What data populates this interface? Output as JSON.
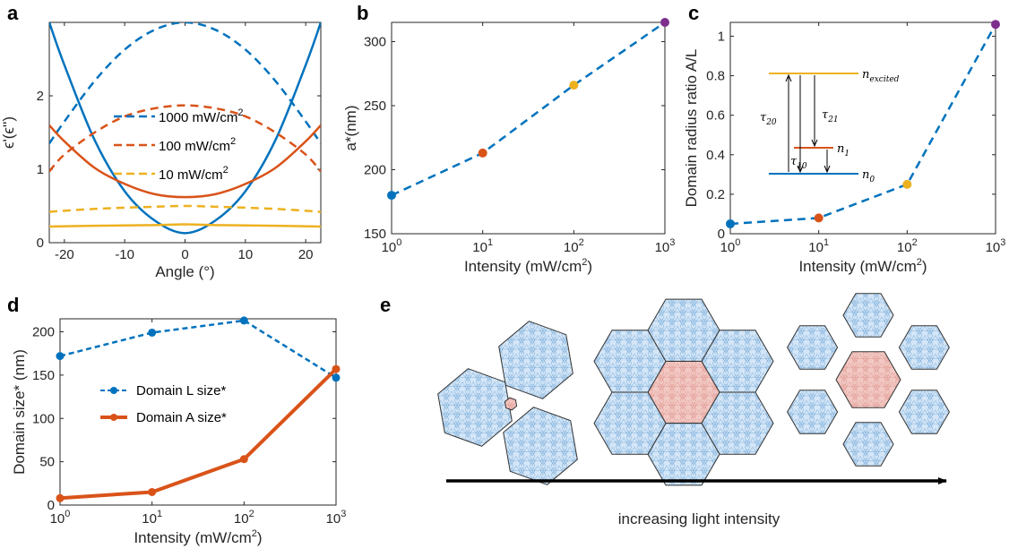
{
  "panel_labels": [
    "a",
    "b",
    "c",
    "d",
    "e"
  ],
  "colors": {
    "blue": "#0072BD",
    "orange": "#D95319",
    "yellow": "#EDB120",
    "purple": "#7E2F8E",
    "hex_blue": "#d4e6f7",
    "hex_red": "#f2c9c4"
  },
  "chart_data": [
    {
      "id": "a",
      "type": "line",
      "xlabel": "Angle (°)",
      "ylabel": "ϵ'(ϵ'')",
      "xlim": [
        -22.5,
        22.5
      ],
      "ylim": [
        0,
        3.0
      ],
      "xticks": [
        -20,
        -10,
        0,
        10,
        20
      ],
      "xtick_labels": [
        "-20",
        "-10",
        "0",
        "10",
        "20"
      ],
      "yticks": [
        0,
        1,
        2
      ],
      "ytick_labels": [
        "0",
        "1",
        "2"
      ],
      "legend_position": "center",
      "legend": [
        {
          "label": "1000 mW/cm",
          "sup": "2",
          "color": "#0072BD"
        },
        {
          "label": "100 mW/cm",
          "sup": "2",
          "color": "#D95319"
        },
        {
          "label": "10 mW/cm",
          "sup": "2",
          "color": "#EDB120"
        }
      ],
      "series": [
        {
          "color": "#0072BD",
          "style": "dashed",
          "x": [
            -22.5,
            -20,
            -15,
            -10,
            -5,
            0,
            5,
            10,
            15,
            20,
            22.5
          ],
          "y": [
            1.35,
            1.65,
            2.2,
            2.63,
            2.9,
            3.0,
            2.9,
            2.63,
            2.2,
            1.65,
            1.35
          ]
        },
        {
          "color": "#0072BD",
          "style": "solid",
          "x": [
            -22.5,
            -20,
            -15,
            -10,
            -5,
            0,
            5,
            10,
            15,
            20,
            22.5
          ],
          "y": [
            3.0,
            2.42,
            1.4,
            0.7,
            0.3,
            0.13,
            0.3,
            0.7,
            1.4,
            2.42,
            3.0
          ]
        },
        {
          "color": "#D95319",
          "style": "dashed",
          "x": [
            -22.5,
            -20,
            -15,
            -10,
            -5,
            0,
            5,
            10,
            15,
            20,
            22.5
          ],
          "y": [
            0.97,
            1.2,
            1.5,
            1.72,
            1.83,
            1.87,
            1.83,
            1.72,
            1.5,
            1.2,
            0.97
          ]
        },
        {
          "color": "#D95319",
          "style": "solid",
          "x": [
            -22.5,
            -20,
            -15,
            -10,
            -5,
            0,
            5,
            10,
            15,
            20,
            22.5
          ],
          "y": [
            1.6,
            1.38,
            1.02,
            0.8,
            0.66,
            0.62,
            0.66,
            0.8,
            1.02,
            1.38,
            1.6
          ]
        },
        {
          "color": "#EDB120",
          "style": "dashed",
          "x": [
            -22.5,
            -15,
            -5,
            0,
            5,
            15,
            22.5
          ],
          "y": [
            0.42,
            0.46,
            0.49,
            0.5,
            0.49,
            0.46,
            0.42
          ]
        },
        {
          "color": "#EDB120",
          "style": "solid",
          "x": [
            -22.5,
            -15,
            -5,
            0,
            5,
            15,
            22.5
          ],
          "y": [
            0.22,
            0.23,
            0.24,
            0.25,
            0.24,
            0.23,
            0.22
          ]
        }
      ]
    },
    {
      "id": "b",
      "type": "line",
      "xscale": "log",
      "xlabel": "Intensity (mW/cm",
      "xlabel_sup": "2",
      "xlabel_end": ")",
      "ylabel": "a*(nm)",
      "xlim": [
        1,
        1000
      ],
      "ylim": [
        150,
        315
      ],
      "xticks": [
        1,
        10,
        100,
        1000
      ],
      "xtick_base": "10",
      "xtick_exps": [
        "0",
        "1",
        "2",
        "3"
      ],
      "yticks": [
        150,
        200,
        250,
        300
      ],
      "ytick_labels": [
        "150",
        "200",
        "250",
        "300"
      ],
      "series": [
        {
          "color": "#0072BD",
          "style": "dashed",
          "x": [
            1,
            10,
            100,
            1000
          ],
          "y": [
            180,
            213,
            266,
            315
          ],
          "point_colors": [
            "#0072BD",
            "#D95319",
            "#EDB120",
            "#7E2F8E"
          ]
        }
      ]
    },
    {
      "id": "c",
      "type": "line",
      "xscale": "log",
      "xlabel": "Intensity (mW/cm",
      "xlabel_sup": "2",
      "xlabel_end": ")",
      "ylabel": "Domain radius ratio A/L",
      "xlim": [
        1,
        1000
      ],
      "ylim": [
        0,
        1.07
      ],
      "xticks": [
        1,
        10,
        100,
        1000
      ],
      "xtick_base": "10",
      "xtick_exps": [
        "0",
        "1",
        "2",
        "3"
      ],
      "yticks": [
        0,
        0.2,
        0.4,
        0.6,
        0.8,
        1
      ],
      "ytick_labels": [
        "0",
        "0.2",
        "0.4",
        "0.6",
        "0.8",
        "1"
      ],
      "series": [
        {
          "color": "#0072BD",
          "style": "dashed",
          "x": [
            1,
            10,
            100,
            1000
          ],
          "y": [
            0.05,
            0.08,
            0.25,
            1.06
          ],
          "point_colors": [
            "#0072BD",
            "#D95319",
            "#EDB120",
            "#7E2F8E"
          ]
        }
      ],
      "inset": {
        "levels": [
          {
            "name": "n",
            "sub": "excited",
            "color": "#EDB120"
          },
          {
            "name": "n",
            "sub": "1",
            "color": "#D95319"
          },
          {
            "name": "n",
            "sub": "0",
            "color": "#0072BD"
          }
        ],
        "transitions": [
          {
            "name": "τ",
            "sub": "20"
          },
          {
            "name": "τ",
            "sub": "21"
          },
          {
            "name": "τ",
            "sub": "10"
          }
        ]
      }
    },
    {
      "id": "d",
      "type": "line",
      "xscale": "log",
      "xlabel": "Intensity (mW/cm",
      "xlabel_sup": "2",
      "xlabel_end": ")",
      "ylabel": "Domain size* (nm)",
      "xlim": [
        1,
        1000
      ],
      "ylim": [
        0,
        215
      ],
      "xticks": [
        1,
        10,
        100,
        1000
      ],
      "xtick_base": "10",
      "xtick_exps": [
        "0",
        "1",
        "2",
        "3"
      ],
      "yticks": [
        0,
        50,
        100,
        150,
        200
      ],
      "ytick_labels": [
        "0",
        "50",
        "100",
        "150",
        "200"
      ],
      "legend_position": "center-left",
      "series": [
        {
          "name": "Domain L size*",
          "color": "#0072BD",
          "style": "dashed",
          "x": [
            1,
            10,
            100,
            1000
          ],
          "y": [
            172,
            199,
            213,
            147
          ]
        },
        {
          "name": "Domain A size*",
          "color": "#D95319",
          "style": "solid-thick",
          "x": [
            1,
            10,
            100,
            1000
          ],
          "y": [
            8,
            15,
            53,
            157
          ]
        }
      ]
    }
  ],
  "panel_e": {
    "arrow_label": "increasing light intensity"
  }
}
